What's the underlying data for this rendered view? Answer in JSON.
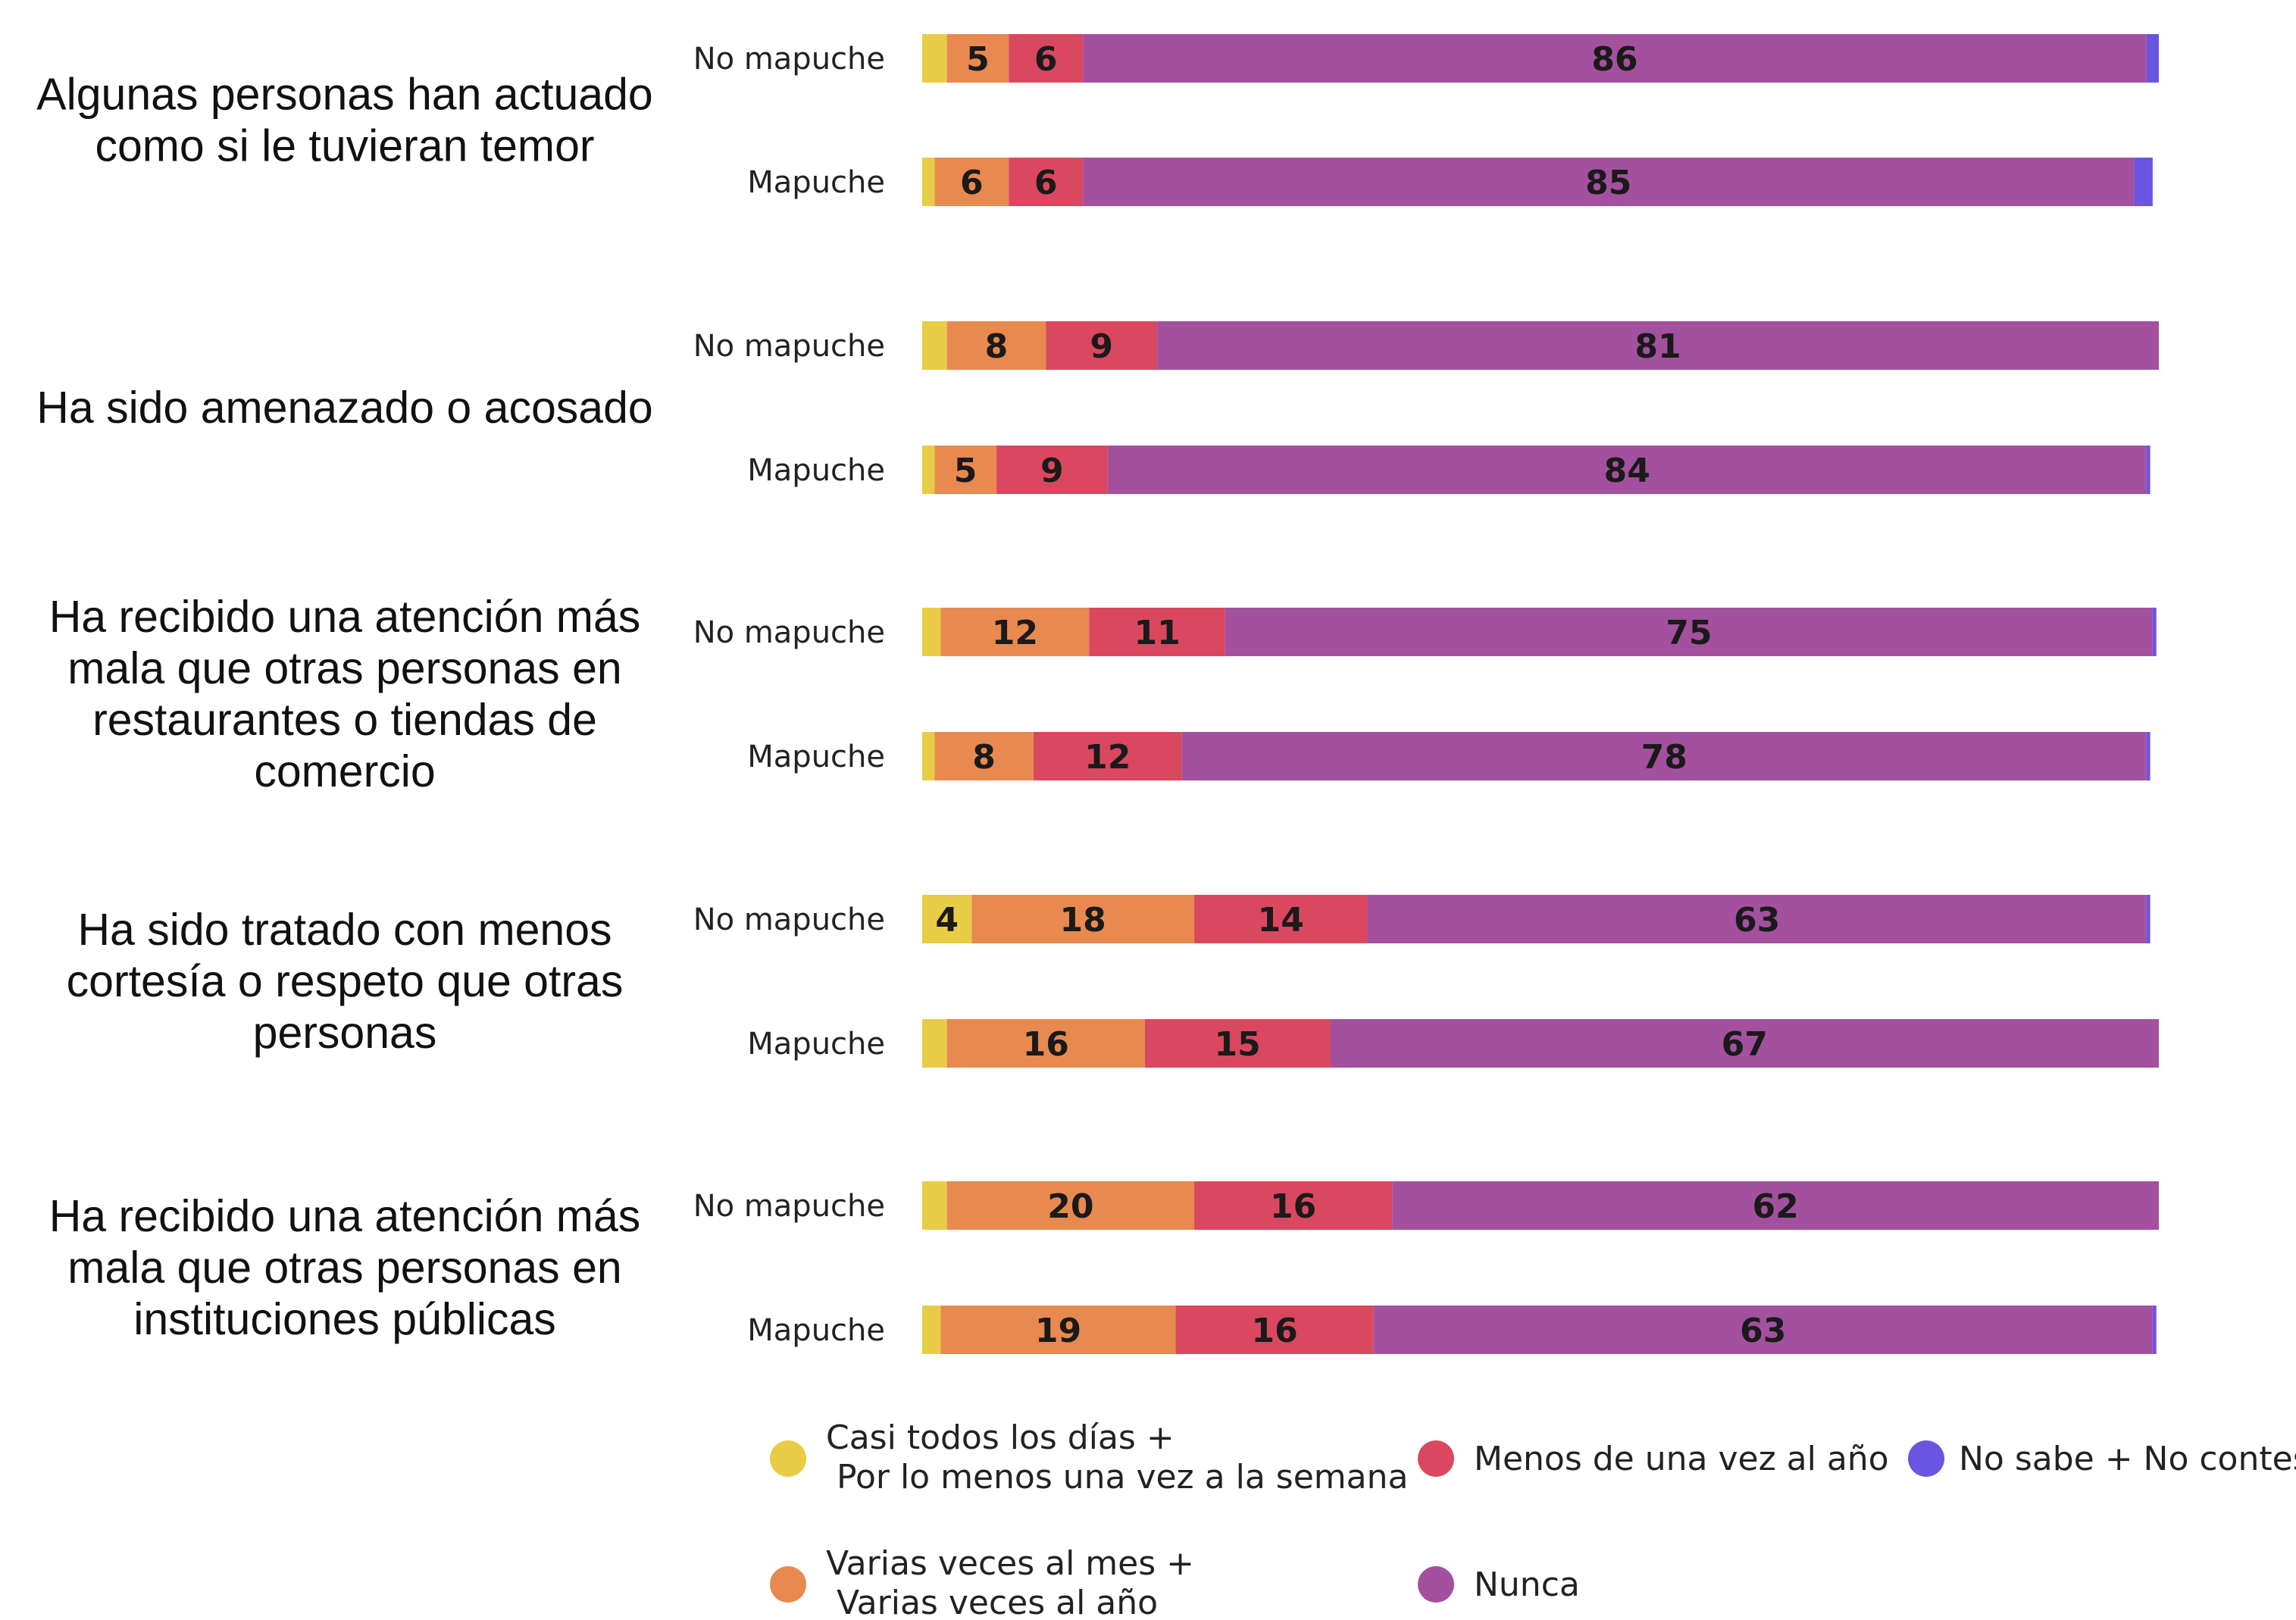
{
  "chart_data": {
    "type": "bar",
    "orientation": "horizontal",
    "stacked": true,
    "percent_scale": true,
    "xlim": [
      0,
      100
    ],
    "grid": false,
    "legend_position": "bottom",
    "segments": [
      {
        "key": "casi",
        "label": [
          "Casi todos los días +",
          " Por lo menos una vez a la semana"
        ],
        "color": "#E8CC45"
      },
      {
        "key": "varias",
        "label": [
          "Varias veces al mes +",
          " Varias veces al año"
        ],
        "color": "#E8894F"
      },
      {
        "key": "menos",
        "label": [
          "Menos de una vez al año"
        ],
        "color": "#D9485F"
      },
      {
        "key": "nunca",
        "label": [
          "Nunca"
        ],
        "color": "#A3509E"
      },
      {
        "key": "nsnc",
        "label": [
          "No sabe + No contesta"
        ],
        "color": "#6A55E0"
      }
    ],
    "groups": [
      {
        "question": [
          "Algunas personas han actuado",
          "como si le tuvieran temor"
        ],
        "bars": [
          {
            "group": "No mapuche",
            "values": [
              2,
              5,
              6,
              86,
              1
            ],
            "labels": [
              "",
              "5",
              "6",
              "86",
              ""
            ]
          },
          {
            "group": "Mapuche",
            "values": [
              1,
              6,
              6,
              85,
              1.5
            ],
            "labels": [
              "",
              "6",
              "6",
              "85",
              ""
            ]
          }
        ]
      },
      {
        "question": [
          "Ha sido amenazado o acosado"
        ],
        "bars": [
          {
            "group": "No mapuche",
            "values": [
              2,
              8,
              9,
              81,
              0.3
            ],
            "labels": [
              "",
              "8",
              "9",
              "81",
              ""
            ]
          },
          {
            "group": "Mapuche",
            "values": [
              1,
              5,
              9,
              84,
              0.3
            ],
            "labels": [
              "",
              "5",
              "9",
              "84",
              ""
            ]
          }
        ]
      },
      {
        "question": [
          "Ha recibido una atención más",
          "mala que otras personas en",
          "restaurantes o tiendas de",
          "comercio"
        ],
        "bars": [
          {
            "group": "No mapuche",
            "values": [
              1.5,
              12,
              11,
              75,
              0.3
            ],
            "labels": [
              "",
              "12",
              "11",
              "75",
              ""
            ]
          },
          {
            "group": "Mapuche",
            "values": [
              1,
              8,
              12,
              78,
              0.3
            ],
            "labels": [
              "",
              "8",
              "12",
              "78",
              ""
            ]
          }
        ]
      },
      {
        "question": [
          "Ha sido tratado con menos",
          "cortesía o respeto que otras",
          "personas"
        ],
        "bars": [
          {
            "group": "No mapuche",
            "values": [
              4,
              18,
              14,
              63,
              0.3
            ],
            "labels": [
              "4",
              "18",
              "14",
              "63",
              ""
            ]
          },
          {
            "group": "Mapuche",
            "values": [
              2,
              16,
              15,
              67,
              0.3
            ],
            "labels": [
              "",
              "16",
              "15",
              "67",
              ""
            ]
          }
        ]
      },
      {
        "question": [
          "Ha recibido una atención más",
          "mala que otras personas en",
          "instituciones públicas"
        ],
        "bars": [
          {
            "group": "No mapuche",
            "values": [
              2,
              20,
              16,
              62,
              0.3
            ],
            "labels": [
              "",
              "20",
              "16",
              "62",
              ""
            ]
          },
          {
            "group": "Mapuche",
            "values": [
              1.5,
              19,
              16,
              63,
              0.3
            ],
            "labels": [
              "",
              "19",
              "16",
              "63",
              ""
            ]
          }
        ]
      }
    ]
  }
}
